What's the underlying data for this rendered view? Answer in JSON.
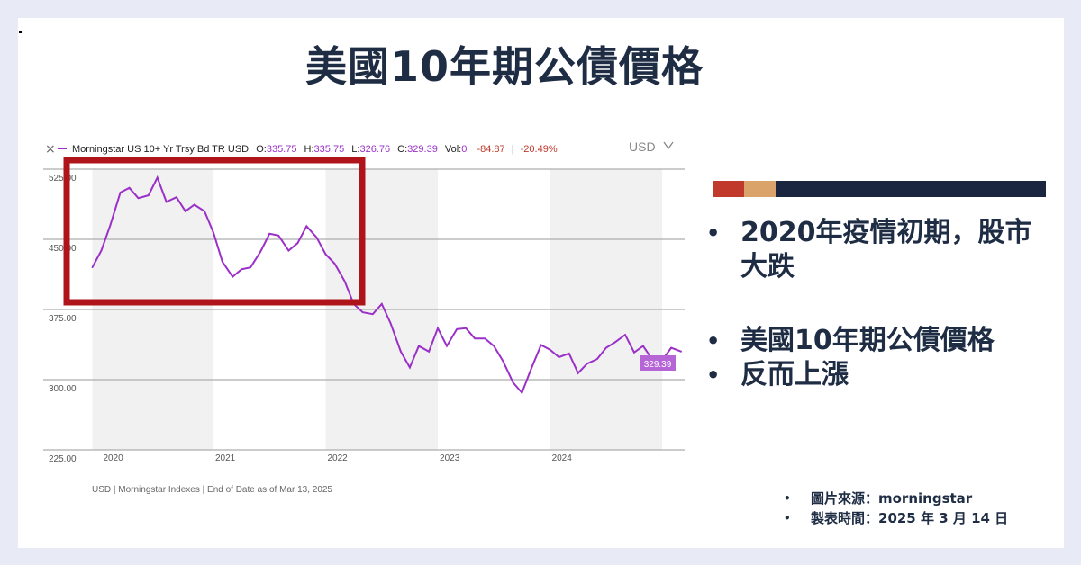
{
  "title": "美國10年期公債價格",
  "chart_data": {
    "type": "line",
    "legend": {
      "close_x": "×",
      "series_name": "Morningstar US 10+ Yr Trsy Bd TR USD",
      "stats": [
        {
          "label": "O:",
          "value": "335.75"
        },
        {
          "label": "H:",
          "value": "335.75"
        },
        {
          "label": "L:",
          "value": "326.76"
        },
        {
          "label": "C:",
          "value": "329.39"
        },
        {
          "label": "Vol:",
          "value": "0"
        }
      ],
      "change": "-84.87",
      "separator": "|",
      "change_pct": "-20.49%"
    },
    "currency_selector": "USD",
    "y_ticks": [
      "525.00",
      "450.00",
      "375.00",
      "300.00",
      "225.00"
    ],
    "y_tick_values": [
      525,
      450,
      375,
      300,
      225
    ],
    "x_ticks": [
      "2020",
      "2021",
      "2022",
      "2023",
      "2024"
    ],
    "x_tick_values": [
      2020.0,
      2021.0,
      2022.0,
      2023.0,
      2024.0
    ],
    "xlim": [
      2019.9,
      2025.2
    ],
    "ylim": [
      225,
      525
    ],
    "last_value_label": "329.39",
    "series_color": "#9b30c8",
    "points": [
      [
        2019.92,
        420
      ],
      [
        2020.0,
        438
      ],
      [
        2020.08,
        465
      ],
      [
        2020.17,
        500
      ],
      [
        2020.25,
        505
      ],
      [
        2020.33,
        494
      ],
      [
        2020.42,
        497
      ],
      [
        2020.5,
        516
      ],
      [
        2020.58,
        490
      ],
      [
        2020.67,
        495
      ],
      [
        2020.75,
        480
      ],
      [
        2020.83,
        487
      ],
      [
        2020.92,
        480
      ],
      [
        2021.0,
        457
      ],
      [
        2021.08,
        426
      ],
      [
        2021.17,
        410
      ],
      [
        2021.25,
        418
      ],
      [
        2021.33,
        420
      ],
      [
        2021.42,
        437
      ],
      [
        2021.5,
        456
      ],
      [
        2021.58,
        454
      ],
      [
        2021.67,
        438
      ],
      [
        2021.75,
        446
      ],
      [
        2021.83,
        464
      ],
      [
        2021.92,
        452
      ],
      [
        2022.0,
        434
      ],
      [
        2022.08,
        424
      ],
      [
        2022.17,
        405
      ],
      [
        2022.25,
        381
      ],
      [
        2022.33,
        372
      ],
      [
        2022.42,
        370
      ],
      [
        2022.5,
        381
      ],
      [
        2022.58,
        360
      ],
      [
        2022.67,
        330
      ],
      [
        2022.75,
        313
      ],
      [
        2022.83,
        336
      ],
      [
        2022.92,
        330
      ],
      [
        2023.0,
        355
      ],
      [
        2023.08,
        336
      ],
      [
        2023.17,
        354
      ],
      [
        2023.25,
        355
      ],
      [
        2023.33,
        344
      ],
      [
        2023.42,
        344
      ],
      [
        2023.5,
        336
      ],
      [
        2023.58,
        320
      ],
      [
        2023.67,
        297
      ],
      [
        2023.75,
        286
      ],
      [
        2023.83,
        311
      ],
      [
        2023.92,
        337
      ],
      [
        2024.0,
        332
      ],
      [
        2024.08,
        324
      ],
      [
        2024.17,
        328
      ],
      [
        2024.25,
        307
      ],
      [
        2024.33,
        317
      ],
      [
        2024.42,
        322
      ],
      [
        2024.5,
        334
      ],
      [
        2024.58,
        340
      ],
      [
        2024.67,
        348
      ],
      [
        2024.75,
        329
      ],
      [
        2024.83,
        336
      ],
      [
        2024.92,
        320
      ],
      [
        2025.0,
        321
      ],
      [
        2025.08,
        334
      ],
      [
        2025.17,
        330
      ]
    ],
    "footer_note": "USD | Morningstar Indexes | End of Date as of Mar 13, 2025"
  },
  "highlight_box_color": "#b0141b",
  "accent_colors": [
    "#c0392b",
    "#d9a36a",
    "#1a2540"
  ],
  "bullets": [
    {
      "text": "2020年疫情初期，股市大跌"
    },
    {
      "text": "美國10年期公債價格"
    },
    {
      "text": "反而上漲"
    }
  ],
  "source": [
    {
      "text": "圖片來源：morningstar"
    },
    {
      "text": "製表時間：2025 年 3 月 14 日"
    }
  ]
}
